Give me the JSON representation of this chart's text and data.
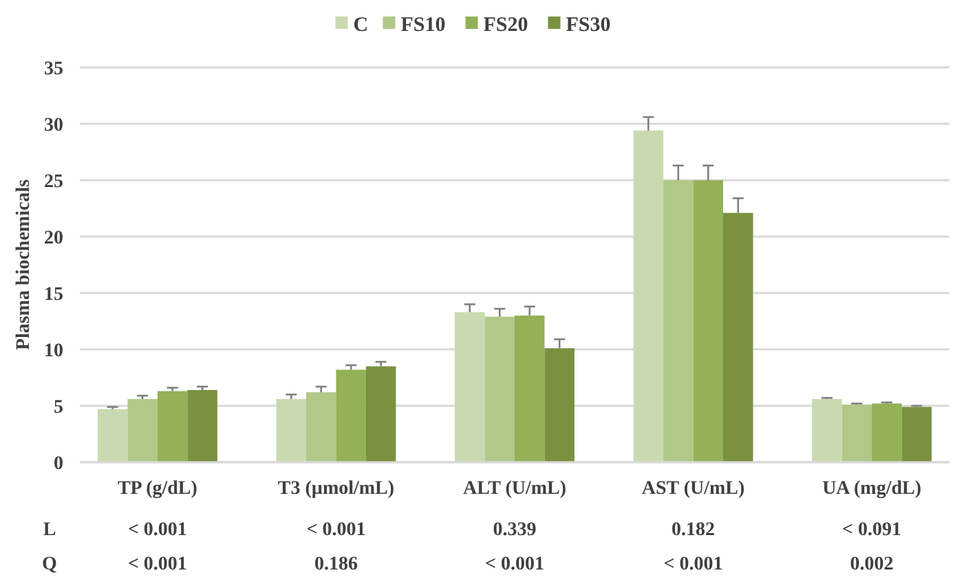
{
  "chart_data": {
    "type": "bar",
    "ylabel": "Plasma biochemicals",
    "categories": [
      "TP (g/dL)",
      "T3 (µmol/mL)",
      "ALT (U/mL)",
      "AST (U/mL)",
      "UA (mg/dL)"
    ],
    "series": [
      {
        "name": "C",
        "color": "#c9dab0",
        "values": [
          4.7,
          5.6,
          13.3,
          29.4,
          5.6
        ],
        "errors": [
          0.2,
          0.4,
          0.7,
          1.2,
          0.1
        ]
      },
      {
        "name": "FS10",
        "color": "#b0c888",
        "values": [
          5.6,
          6.2,
          12.9,
          25.0,
          5.1
        ],
        "errors": [
          0.3,
          0.5,
          0.7,
          1.3,
          0.1
        ]
      },
      {
        "name": "FS20",
        "color": "#93b157",
        "values": [
          6.3,
          8.2,
          13.0,
          25.0,
          5.2
        ],
        "errors": [
          0.3,
          0.4,
          0.8,
          1.3,
          0.1
        ]
      },
      {
        "name": "FS30",
        "color": "#7a9240",
        "values": [
          6.4,
          8.5,
          10.1,
          22.1,
          4.9
        ],
        "errors": [
          0.3,
          0.4,
          0.8,
          1.3,
          0.1
        ]
      }
    ],
    "ylim": [
      0,
      35
    ],
    "yticks": [
      0,
      5,
      10,
      15,
      20,
      25,
      30,
      35
    ],
    "grid": "y",
    "legend": "top",
    "annotations": [
      "L",
      "< 0.001",
      "< 0.001",
      "0.339",
      "0.182",
      "< 0.091",
      "Q",
      "< 0.001",
      "0.186",
      "< 0.001",
      "< 0.001",
      "0.002"
    ]
  }
}
